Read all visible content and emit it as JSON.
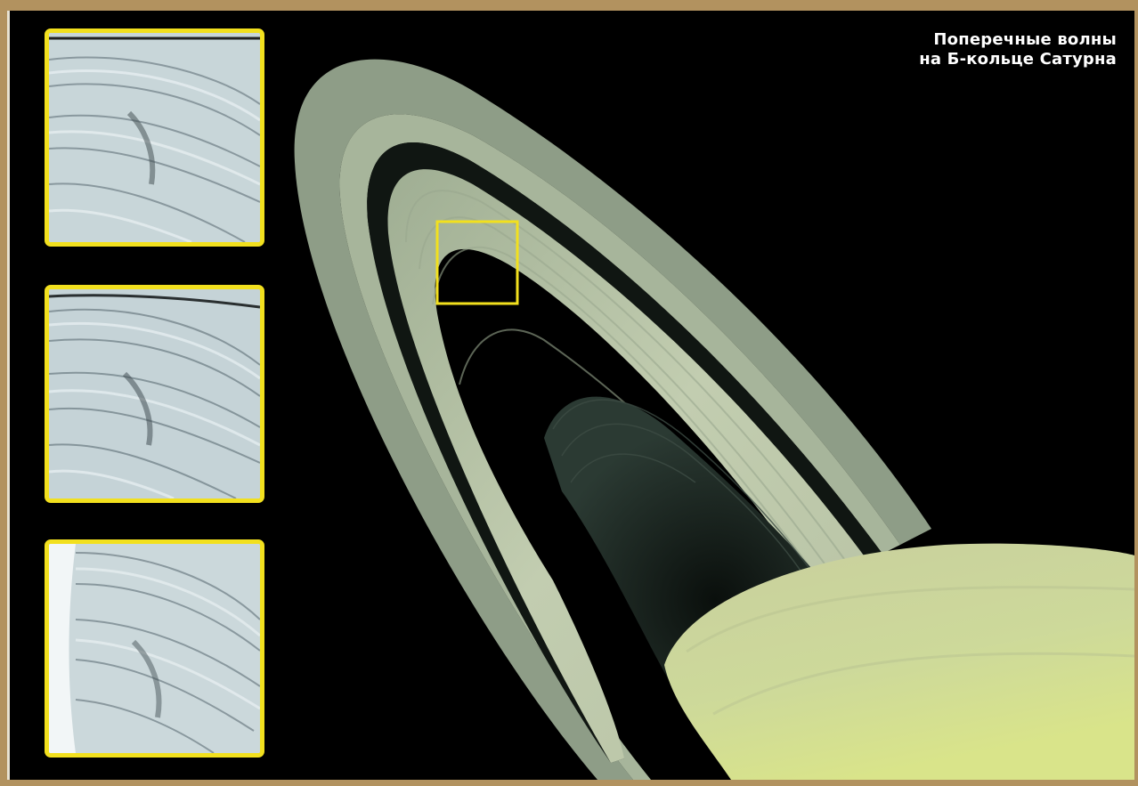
{
  "title": {
    "line1": "Поперечные волны",
    "line2": "на Б-кольце Сатурна"
  },
  "colors": {
    "background": "#000000",
    "frame": "#b2925f",
    "highlight": "#f2e01e",
    "title_text": "#ffffff",
    "ring": "#b9c7a6",
    "planet": "#c9d59c"
  },
  "insets": [
    {
      "name": "inset-top"
    },
    {
      "name": "inset-middle"
    },
    {
      "name": "inset-bottom"
    }
  ]
}
